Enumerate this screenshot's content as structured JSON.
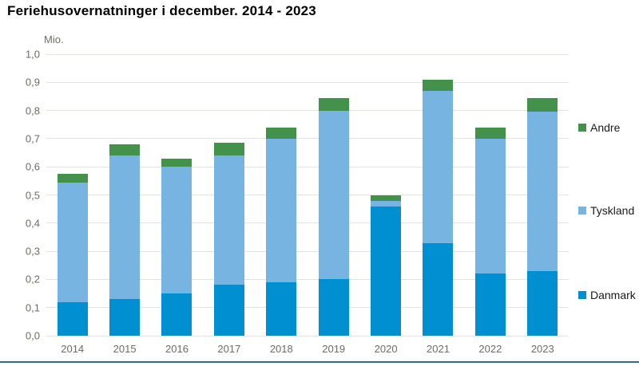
{
  "page": {
    "background": "#ffffff",
    "footer_line_color": "#2f6a9b"
  },
  "chart_data": {
    "type": "bar",
    "stacked": true,
    "title": "Feriehusovernatninger i december. 2014 - 2023",
    "unit_label": "Mio.",
    "categories": [
      "2014",
      "2015",
      "2016",
      "2017",
      "2018",
      "2019",
      "2020",
      "2021",
      "2022",
      "2023"
    ],
    "series": [
      {
        "name": "Danmark",
        "color": "#0090d2",
        "values": [
          0.12,
          0.13,
          0.15,
          0.18,
          0.19,
          0.2,
          0.46,
          0.33,
          0.22,
          0.23
        ]
      },
      {
        "name": "Tyskland",
        "color": "#77b4e2",
        "values": [
          0.425,
          0.51,
          0.45,
          0.46,
          0.51,
          0.6,
          0.02,
          0.54,
          0.48,
          0.565
        ]
      },
      {
        "name": "Andre",
        "color": "#43914b",
        "values": [
          0.03,
          0.04,
          0.03,
          0.045,
          0.04,
          0.045,
          0.02,
          0.04,
          0.04,
          0.05
        ]
      }
    ],
    "totals": [
      0.575,
      0.68,
      0.63,
      0.685,
      0.74,
      0.845,
      0.5,
      0.91,
      0.74,
      0.845
    ],
    "xlabel": "",
    "ylabel": "Mio.",
    "ylim": [
      0,
      1.0
    ],
    "y_ticks": [
      "0,0",
      "0,1",
      "0,2",
      "0,3",
      "0,4",
      "0,5",
      "0,6",
      "0,7",
      "0,8",
      "0,9",
      "1,0"
    ],
    "grid": true,
    "legend_position": "right",
    "legend": [
      {
        "label": "Andre",
        "color": "#43914b"
      },
      {
        "label": "Tyskland",
        "color": "#77b4e2"
      },
      {
        "label": "Danmark",
        "color": "#0090d2"
      }
    ]
  }
}
